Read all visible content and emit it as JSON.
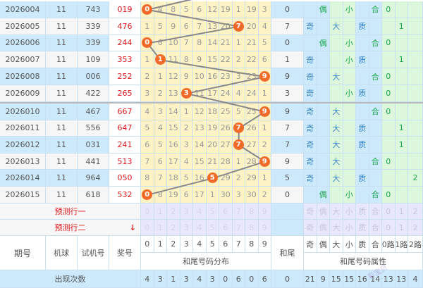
{
  "colors": {
    "row_blue": "#cdeafc",
    "row_white": "#f6f6f6",
    "digit_bg": "#fdf3c4",
    "ball": "#f26a2a",
    "pred_bg": "#e9e7fb",
    "attr_green": "#dcf7dc",
    "red": "#e0191e"
  },
  "rows": [
    {
      "period": "2026004",
      "ball": "11",
      "test": "743",
      "prize": "019",
      "dist": [
        "0",
        "4",
        "8",
        "5",
        "6",
        "12",
        "19",
        "1",
        "19",
        "3"
      ],
      "hit": 0,
      "tail": "0",
      "attrs": [
        "",
        "偶",
        "",
        "小",
        "",
        "合",
        "0",
        "",
        ""
      ]
    },
    {
      "period": "2026005",
      "ball": "11",
      "test": "339",
      "prize": "476",
      "dist": [
        "1",
        "5",
        "9",
        "6",
        "7",
        "13",
        "20",
        "7",
        "20",
        "4"
      ],
      "hit": 7,
      "tail": "7",
      "attrs": [
        "奇",
        "",
        "大",
        "",
        "质",
        "",
        "",
        "1",
        ""
      ]
    },
    {
      "period": "2026006",
      "ball": "11",
      "test": "339",
      "prize": "244",
      "dist": [
        "0",
        "6",
        "10",
        "7",
        "8",
        "14",
        "21",
        "1",
        "21",
        "5"
      ],
      "hit": 0,
      "tail": "0",
      "attrs": [
        "",
        "偶",
        "",
        "小",
        "",
        "合",
        "0",
        "",
        ""
      ]
    },
    {
      "period": "2026007",
      "ball": "11",
      "test": "109",
      "prize": "353",
      "dist": [
        "1",
        "1",
        "11",
        "8",
        "9",
        "15",
        "22",
        "2",
        "22",
        "6"
      ],
      "hit": 1,
      "tail": "1",
      "attrs": [
        "奇",
        "",
        "",
        "小",
        "质",
        "",
        "",
        "1",
        ""
      ]
    },
    {
      "period": "2026008",
      "ball": "11",
      "test": "006",
      "prize": "252",
      "dist": [
        "2",
        "1",
        "12",
        "9",
        "10",
        "16",
        "23",
        "3",
        "23",
        "9"
      ],
      "hit": 9,
      "tail": "9",
      "attrs": [
        "奇",
        "",
        "大",
        "",
        "",
        "合",
        "0",
        "",
        ""
      ]
    },
    {
      "period": "2026009",
      "ball": "11",
      "test": "422",
      "prize": "265",
      "dist": [
        "3",
        "2",
        "13",
        "3",
        "11",
        "17",
        "24",
        "4",
        "24",
        "1"
      ],
      "hit": 3,
      "tail": "3",
      "attrs": [
        "奇",
        "",
        "",
        "小",
        "质",
        "",
        "0",
        "",
        ""
      ]
    },
    {
      "period": "2026010",
      "ball": "11",
      "test": "467",
      "prize": "667",
      "dist": [
        "4",
        "3",
        "14",
        "1",
        "12",
        "18",
        "25",
        "5",
        "25",
        "9"
      ],
      "hit": 9,
      "tail": "9",
      "attrs": [
        "奇",
        "",
        "大",
        "",
        "",
        "合",
        "0",
        "",
        ""
      ]
    },
    {
      "period": "2026011",
      "ball": "11",
      "test": "556",
      "prize": "647",
      "dist": [
        "5",
        "4",
        "15",
        "2",
        "13",
        "19",
        "26",
        "7",
        "26",
        "1"
      ],
      "hit": 7,
      "tail": "7",
      "attrs": [
        "奇",
        "",
        "大",
        "",
        "质",
        "",
        "",
        "1",
        ""
      ]
    },
    {
      "period": "2026012",
      "ball": "11",
      "test": "031",
      "prize": "241",
      "dist": [
        "6",
        "5",
        "16",
        "3",
        "14",
        "20",
        "27",
        "7",
        "27",
        "2"
      ],
      "hit": 7,
      "tail": "7",
      "attrs": [
        "奇",
        "",
        "大",
        "",
        "质",
        "",
        "",
        "1",
        ""
      ]
    },
    {
      "period": "2026013",
      "ball": "11",
      "test": "441",
      "prize": "513",
      "dist": [
        "7",
        "6",
        "17",
        "4",
        "15",
        "21",
        "28",
        "1",
        "28",
        "9"
      ],
      "hit": 9,
      "tail": "9",
      "attrs": [
        "奇",
        "",
        "大",
        "",
        "",
        "合",
        "0",
        "",
        ""
      ]
    },
    {
      "period": "2026014",
      "ball": "11",
      "test": "964",
      "prize": "050",
      "dist": [
        "8",
        "7",
        "18",
        "5",
        "16",
        "5",
        "29",
        "2",
        "29",
        "1"
      ],
      "hit": 5,
      "tail": "5",
      "attrs": [
        "奇",
        "",
        "大",
        "",
        "质",
        "",
        "",
        "",
        "2"
      ]
    },
    {
      "period": "2026015",
      "ball": "11",
      "test": "618",
      "prize": "532",
      "dist": [
        "0",
        "8",
        "19",
        "6",
        "17",
        "1",
        "30",
        "3",
        "30",
        "2"
      ],
      "hit": 0,
      "tail": "0",
      "attrs": [
        "",
        "偶",
        "",
        "小",
        "",
        "合",
        "0",
        "",
        ""
      ]
    }
  ],
  "prediction": {
    "row1_label": "预测行一",
    "row2_label": "预测行二",
    "digits": [
      "0",
      "1",
      "2",
      "3",
      "4",
      "5",
      "6",
      "7",
      "8",
      "9"
    ],
    "attrs": [
      "奇",
      "偶",
      "大",
      "小",
      "质",
      "合",
      "0",
      "1",
      "2"
    ],
    "arrow_icon": "arrow-down-icon"
  },
  "header": {
    "period": "期号",
    "ball": "机球",
    "test": "试机号",
    "prize": "奖号",
    "digits": [
      "0",
      "1",
      "2",
      "3",
      "4",
      "5",
      "6",
      "7",
      "8",
      "9"
    ],
    "dist_label": "和尾号码分布",
    "tail": "和尾",
    "attrs": [
      "奇",
      "偶",
      "大",
      "小",
      "质",
      "合",
      "0路",
      "1路",
      "2路"
    ],
    "attr_label": "和尾号码属性"
  },
  "counts": {
    "label": "出现次数",
    "digits": [
      "4",
      "3",
      "1",
      "3",
      "4",
      "3",
      "0",
      "6",
      "0",
      "6"
    ],
    "tail": "0",
    "attrs": [
      "21",
      "9",
      "15",
      "15",
      "16",
      "14",
      "13",
      "13",
      "4"
    ]
  },
  "watermark": "彩宝贝"
}
